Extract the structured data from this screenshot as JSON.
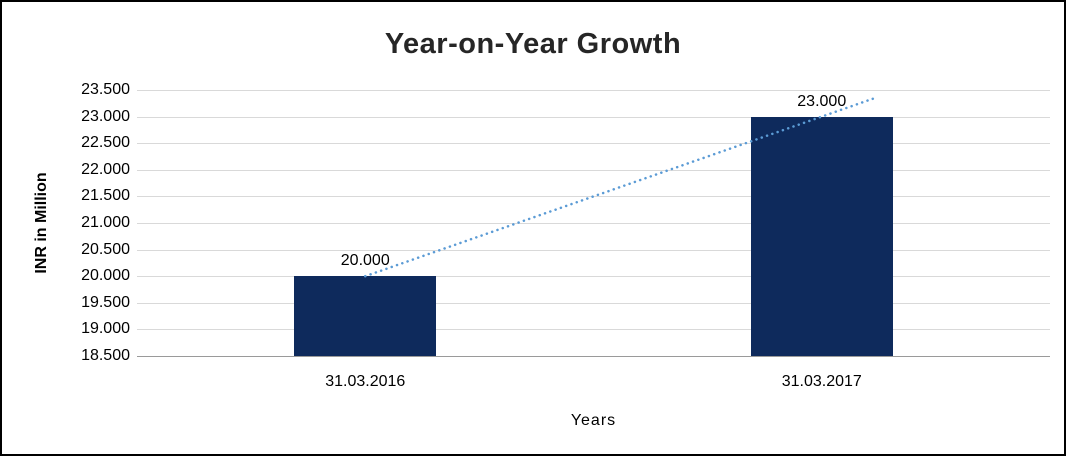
{
  "chart_data": {
    "type": "bar",
    "title": "Year-on-Year Growth",
    "xlabel": "Years",
    "ylabel": "INR in Million",
    "categories": [
      "31.03.2016",
      "31.03.2017"
    ],
    "values": [
      20.0,
      23.0
    ],
    "data_labels": [
      "20.000",
      "23.000"
    ],
    "ylim": [
      18.5,
      23.5
    ],
    "ytick_step": 0.5,
    "ytick_labels": [
      "18.500",
      "19.000",
      "19.500",
      "20.000",
      "20.500",
      "21.000",
      "21.500",
      "22.000",
      "22.500",
      "23.000",
      "23.500"
    ],
    "grid": true,
    "legend": "none",
    "bar_color": "#0e2a5c",
    "trendline_color": "#5b9bd5",
    "trendline_style": "dotted",
    "gridline_color": "#d9d9d9",
    "axis_line_color": "#9a9a9a",
    "title_color": "#262626"
  }
}
